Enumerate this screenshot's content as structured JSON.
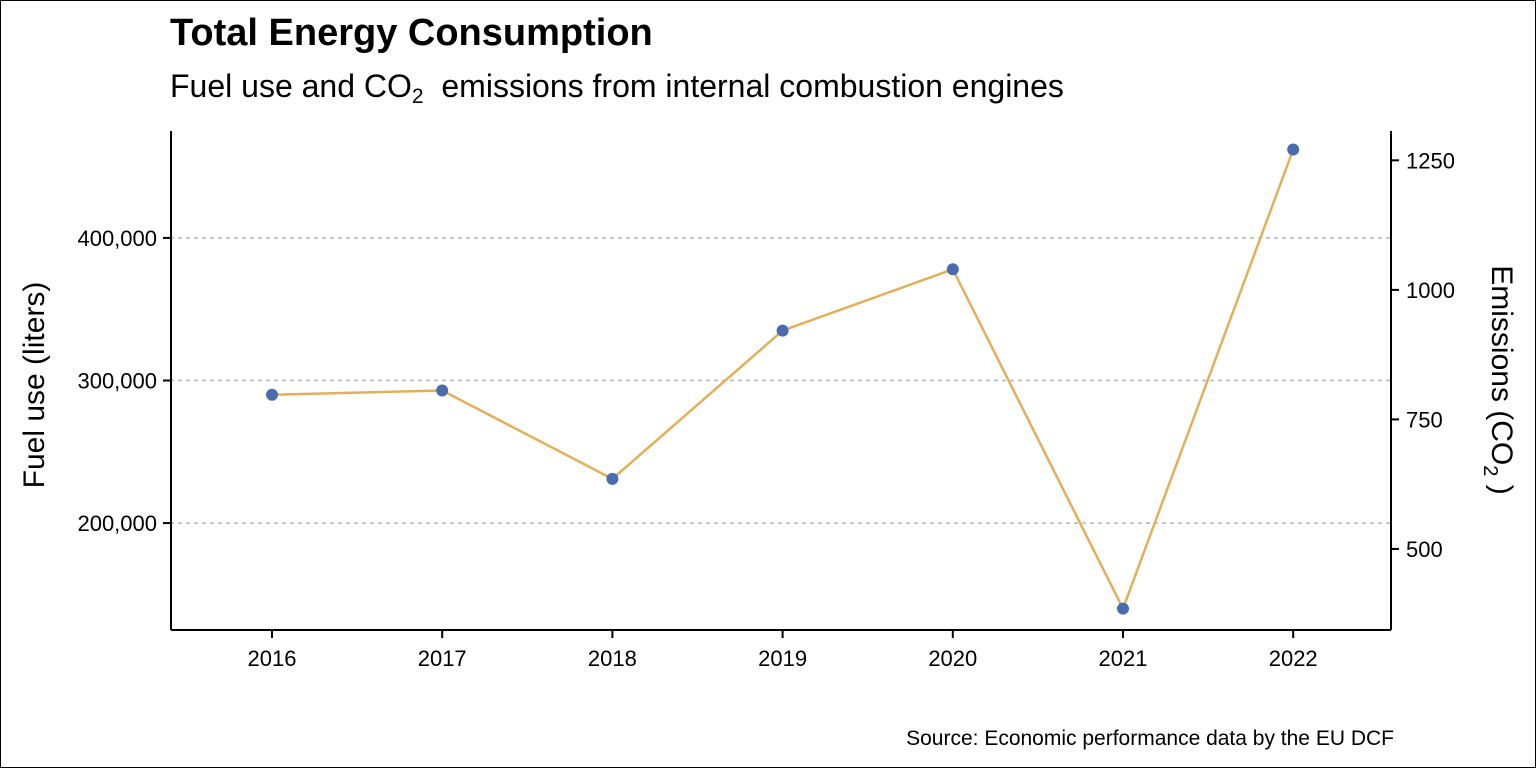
{
  "title": "Total Energy Consumption",
  "subtitle": {
    "before": "Fuel use and CO",
    "sub": "2",
    "after": "  emissions from internal combustion engines"
  },
  "caption": "Source: Economic performance data by the EU DCF",
  "colors": {
    "line": "#E2B05A",
    "point": "#4A6BAE",
    "grid": "#BEBEBE",
    "axis": "#000000"
  },
  "chart_data": {
    "type": "line",
    "x": [
      "2016",
      "2017",
      "2018",
      "2019",
      "2020",
      "2021",
      "2022"
    ],
    "series": [
      {
        "values": [
          290000,
          293000,
          231000,
          335000,
          378000,
          140000,
          462000
        ],
        "axis": "left"
      }
    ],
    "ylabel_left": "Fuel use (liters)",
    "ylabel_right": {
      "before": "Emissions (CO",
      "sub": "2",
      "after": " )"
    },
    "yticks_left": [
      200000,
      300000,
      400000
    ],
    "yticks_left_labels": [
      "200,000",
      "300,000",
      "400,000"
    ],
    "yticks_right": [
      500,
      750,
      1000,
      1250
    ],
    "yticks_right_labels": [
      "500",
      "750",
      "1000",
      "1250"
    ],
    "ylim_left": [
      125000,
      475000
    ],
    "ylim_right": [
      343.6,
      1306.6
    ],
    "grid": "horizontal dotted",
    "legend": "none"
  }
}
